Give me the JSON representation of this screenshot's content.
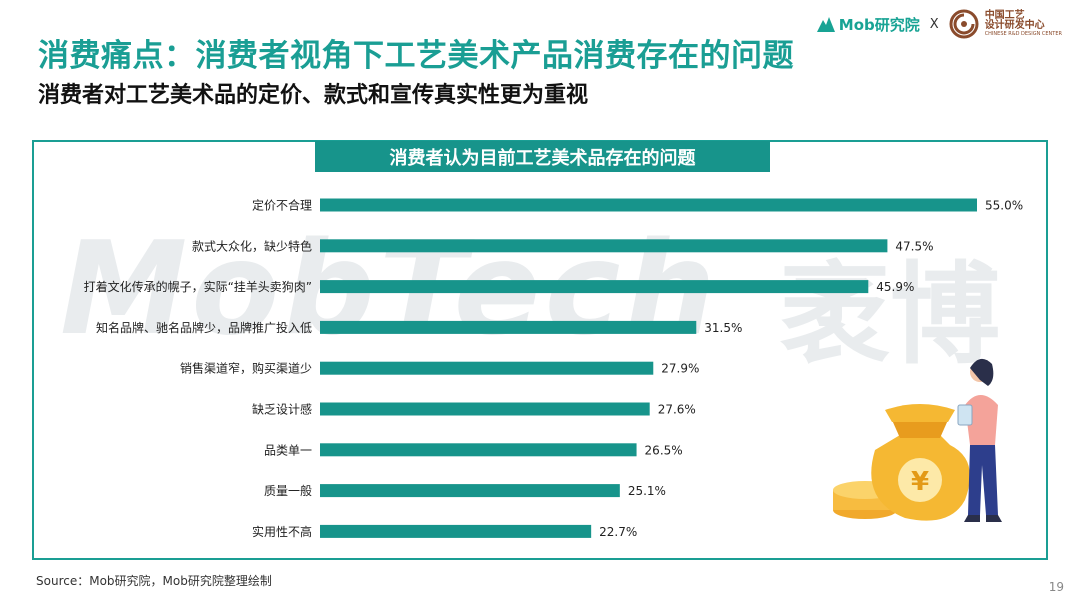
{
  "page": {
    "title": "消费痛点：消费者视角下工艺美术产品消费存在的问题",
    "subtitle": "消费者对工艺美术品的定价、款式和宣传真实性更为重视",
    "source": "Source：Mob研究院，Mob研究院整理绘制",
    "page_number": "19"
  },
  "logos": {
    "mob": "Mob研究院",
    "separator": "X",
    "center_line1": "中国工艺",
    "center_line2": "设计研发中心",
    "center_line3": "CHINESE R&D DESIGN CENTER"
  },
  "watermark": {
    "latin": "MobTech",
    "cn": "袤博"
  },
  "colors": {
    "accent": "#1a9e94",
    "bar": "#17948b",
    "title_bg": "#17948b"
  },
  "chart_data": {
    "type": "bar",
    "orientation": "horizontal",
    "title": "消费者认为目前工艺美术品存在的问题",
    "categories": [
      "定价不合理",
      "款式大众化，缺少特色",
      "打着文化传承的幌子，实际“挂羊头卖狗肉”",
      "知名品牌、驰名品牌少，品牌推广投入低",
      "销售渠道窄，购买渠道少",
      "缺乏设计感",
      "品类单一",
      "质量一般",
      "实用性不高"
    ],
    "values": [
      55.0,
      47.5,
      45.9,
      31.5,
      27.9,
      27.6,
      26.5,
      25.1,
      22.7
    ],
    "value_labels": [
      "55.0%",
      "47.5%",
      "45.9%",
      "31.5%",
      "27.9%",
      "27.6%",
      "26.5%",
      "25.1%",
      "22.7%"
    ],
    "xlim": [
      0,
      55
    ],
    "grid": false,
    "legend": "none"
  }
}
